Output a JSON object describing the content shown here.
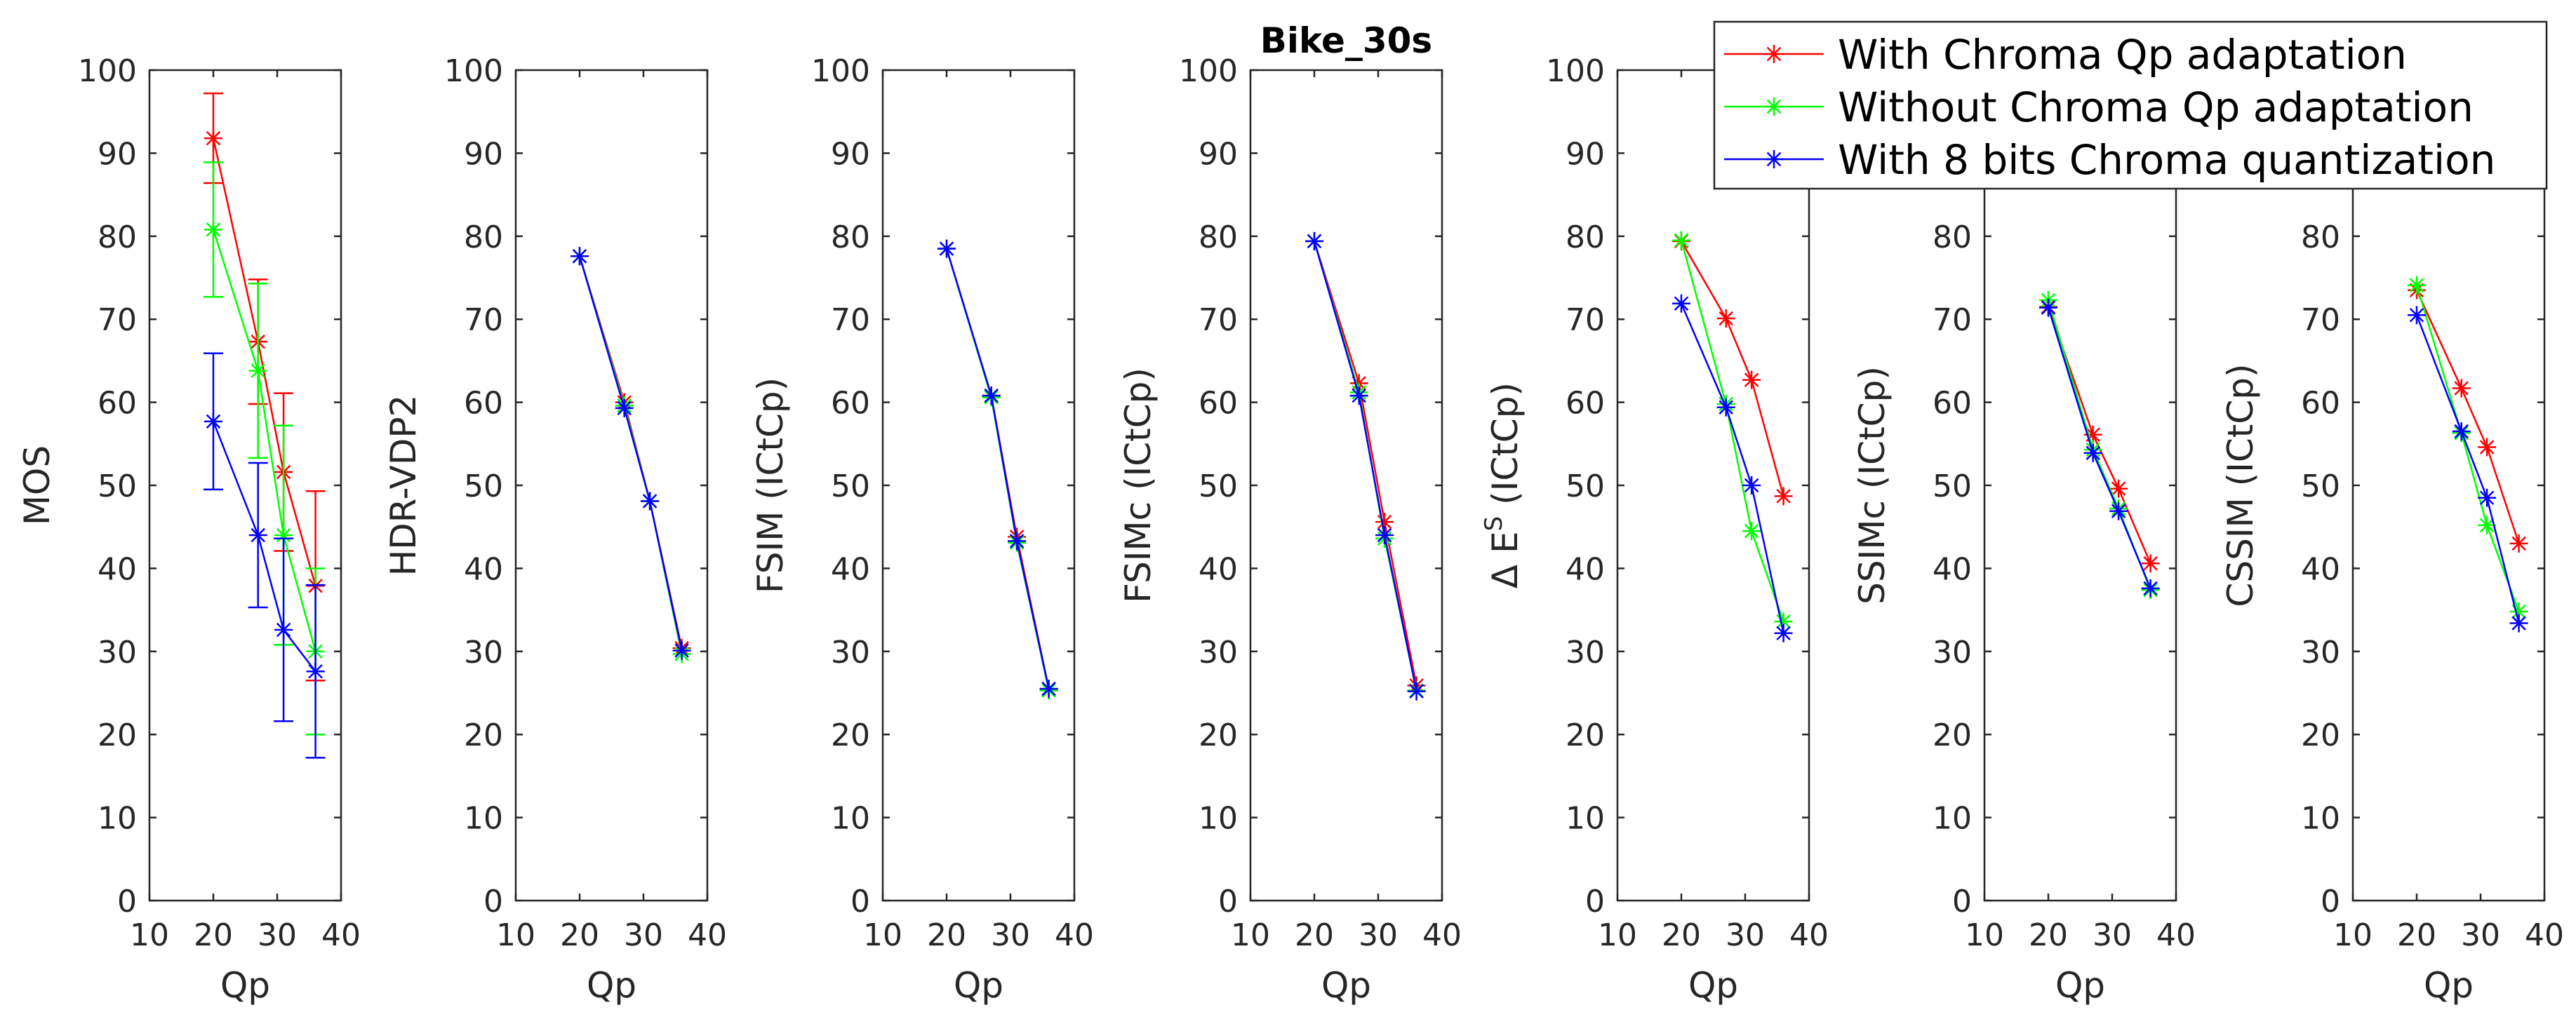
{
  "chart_data": {
    "type": "line",
    "title": "Bike_30s",
    "title_panel": 3,
    "legend": {
      "placement": "top-right",
      "entries": [
        {
          "series": "with",
          "label": "With Chroma Qp adaptation"
        },
        {
          "series": "without",
          "label": "Without Chroma Qp adaptation"
        },
        {
          "series": "bits8",
          "label": "With 8 bits Chroma quantization"
        }
      ]
    },
    "series_colors": {
      "with": "#ff0000",
      "without": "#00ff00",
      "bits8": "#0000ff"
    },
    "series_order": [
      "with",
      "without",
      "bits8"
    ],
    "marker": "asterisk",
    "xlabel": "Qp",
    "xlim": [
      10,
      40
    ],
    "xticks": [
      "10",
      "20",
      "30",
      "40"
    ],
    "ylim": [
      0,
      100
    ],
    "yticks": [
      "0",
      "10",
      "20",
      "30",
      "40",
      "50",
      "60",
      "70",
      "80",
      "90",
      "100"
    ],
    "panels": [
      {
        "ylabel": "MOS",
        "series": {
          "with": {
            "x": [
              20,
              27,
              31,
              36
            ],
            "y": [
              91.8,
              67.3,
              51.6,
              37.9
            ],
            "err": [
              5.4,
              7.5,
              9.5,
              11.4
            ]
          },
          "without": {
            "x": [
              20,
              27,
              31,
              36
            ],
            "y": [
              80.8,
              63.8,
              44.0,
              30.0
            ],
            "err": [
              8.1,
              10.5,
              13.2,
              10.0
            ]
          },
          "bits8": {
            "x": [
              20,
              27,
              31,
              36
            ],
            "y": [
              57.7,
              44.0,
              32.6,
              27.6
            ],
            "err": [
              8.2,
              8.7,
              11.0,
              10.4
            ]
          }
        }
      },
      {
        "ylabel": "HDR-VDP2",
        "series": {
          "with": {
            "x": [
              20,
              27,
              31,
              36
            ],
            "y": [
              77.6,
              60.0,
              48.1,
              30.4
            ]
          },
          "without": {
            "x": [
              20,
              27,
              31,
              36
            ],
            "y": [
              77.6,
              59.6,
              48.1,
              29.7
            ]
          },
          "bits8": {
            "x": [
              20,
              27,
              31,
              36
            ],
            "y": [
              77.6,
              59.3,
              48.1,
              30.1
            ]
          }
        }
      },
      {
        "ylabel": "FSIM (ICtCp)",
        "series": {
          "with": {
            "x": [
              20,
              27,
              31,
              36
            ],
            "y": [
              78.5,
              60.8,
              43.8,
              25.5
            ]
          },
          "without": {
            "x": [
              20,
              27,
              31,
              36
            ],
            "y": [
              78.5,
              60.6,
              43.1,
              25.3
            ]
          },
          "bits8": {
            "x": [
              20,
              27,
              31,
              36
            ],
            "y": [
              78.5,
              60.8,
              43.3,
              25.5
            ]
          }
        }
      },
      {
        "ylabel": "FSIMc (ICtCp)",
        "series": {
          "with": {
            "x": [
              20,
              27,
              31,
              36
            ],
            "y": [
              79.4,
              62.3,
              45.6,
              25.9
            ]
          },
          "without": {
            "x": [
              20,
              27,
              31,
              36
            ],
            "y": [
              79.4,
              61.2,
              43.6,
              25.3
            ]
          },
          "bits8": {
            "x": [
              20,
              27,
              31,
              36
            ],
            "y": [
              79.4,
              60.8,
              44.0,
              25.2
            ]
          }
        }
      },
      {
        "ylabel": "Δ E",
        "ylabel_sup": "S",
        "ylabel_suffix": " (ICtCp)",
        "series": {
          "with": {
            "x": [
              20,
              27,
              31,
              36
            ],
            "y": [
              79.4,
              70.1,
              62.7,
              48.7
            ]
          },
          "without": {
            "x": [
              20,
              27,
              31,
              36
            ],
            "y": [
              79.5,
              59.8,
              44.5,
              33.6
            ]
          },
          "bits8": {
            "x": [
              20,
              27,
              31,
              36
            ],
            "y": [
              71.9,
              59.4,
              50.0,
              32.2
            ]
          }
        }
      },
      {
        "ylabel": "SSIMc (ICtCp)",
        "series": {
          "with": {
            "x": [
              20,
              27,
              31,
              36
            ],
            "y": [
              71.5,
              56.1,
              49.6,
              40.6
            ]
          },
          "without": {
            "x": [
              20,
              27,
              31,
              36
            ],
            "y": [
              72.3,
              54.3,
              47.2,
              37.4
            ]
          },
          "bits8": {
            "x": [
              20,
              27,
              31,
              36
            ],
            "y": [
              71.4,
              53.9,
              46.9,
              37.6
            ]
          }
        }
      },
      {
        "ylabel": "CSSIM (ICtCp)",
        "series": {
          "with": {
            "x": [
              20,
              27,
              31,
              36
            ],
            "y": [
              73.5,
              61.7,
              54.6,
              43.0
            ]
          },
          "without": {
            "x": [
              20,
              27,
              31,
              36
            ],
            "y": [
              74.1,
              56.3,
              45.2,
              34.8
            ]
          },
          "bits8": {
            "x": [
              20,
              27,
              31,
              36
            ],
            "y": [
              70.5,
              56.5,
              48.5,
              33.4
            ]
          }
        }
      }
    ]
  }
}
